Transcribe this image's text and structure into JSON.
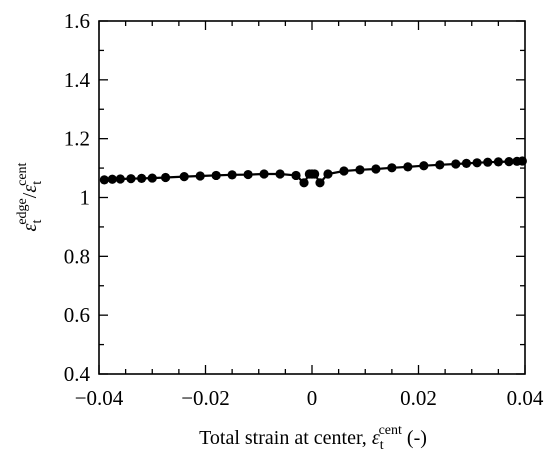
{
  "chart_data": {
    "type": "line",
    "xlabel": "Total strain at center, ",
    "xlabel_symbol": "ε",
    "xlabel_sub": "t",
    "xlabel_sup": "cent",
    "xlabel_suffix": " (-)",
    "ylabel_num_symbol": "ε",
    "ylabel_num_sub": "t",
    "ylabel_num_sup": "edge",
    "ylabel_slash": "/",
    "ylabel_den_symbol": "ε",
    "ylabel_den_sub": "t",
    "ylabel_den_sup": "cent",
    "xlim": [
      -0.04,
      0.04
    ],
    "ylim": [
      0.4,
      1.6
    ],
    "xticks": [
      -0.04,
      -0.02,
      0,
      0.02,
      0.04
    ],
    "xtick_labels": [
      "−0.04",
      "−0.02",
      "0",
      "0.02",
      "0.04"
    ],
    "yticks": [
      0.4,
      0.6,
      0.8,
      1.0,
      1.2,
      1.4,
      1.6
    ],
    "ytick_labels": [
      "0.4",
      "0.6",
      "0.8",
      "1",
      "1.2",
      "1.4",
      "1.6"
    ],
    "x_minor_step": 0.005,
    "y_minor_step": 0.1,
    "grid": false,
    "series": [
      {
        "marker": "circle",
        "color": "#000000",
        "x": [
          -0.039,
          -0.0375,
          -0.036,
          -0.034,
          -0.032,
          -0.03,
          -0.0275,
          -0.024,
          -0.021,
          -0.018,
          -0.015,
          -0.012,
          -0.009,
          -0.006,
          -0.003,
          -0.0015,
          -0.0005,
          0.0,
          0.0005,
          0.0015,
          0.003,
          0.006,
          0.009,
          0.012,
          0.015,
          0.018,
          0.021,
          0.024,
          0.027,
          0.029,
          0.031,
          0.033,
          0.035,
          0.037,
          0.0385,
          0.0395
        ],
        "y": [
          1.06,
          1.062,
          1.063,
          1.064,
          1.065,
          1.066,
          1.068,
          1.071,
          1.073,
          1.075,
          1.077,
          1.078,
          1.08,
          1.08,
          1.075,
          1.05,
          1.08,
          1.08,
          1.08,
          1.05,
          1.08,
          1.09,
          1.094,
          1.097,
          1.101,
          1.104,
          1.108,
          1.111,
          1.114,
          1.116,
          1.118,
          1.12,
          1.121,
          1.122,
          1.123,
          1.124
        ]
      }
    ]
  }
}
